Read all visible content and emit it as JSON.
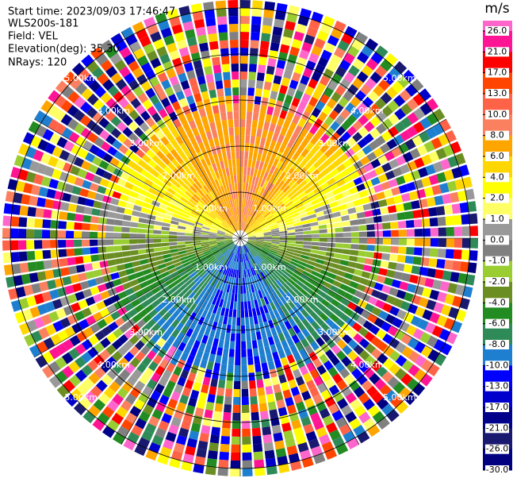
{
  "chart_data": {
    "type": "ppi",
    "info": [
      "Start time: 2023/09/03 17:46:47",
      "WLS200s-181",
      "Field: VEL",
      "Elevation(deg): 35.30",
      "NRays: 120"
    ],
    "range_labels": [
      "1.00km",
      "2.00km",
      "3.00km",
      "4.00km",
      "5.00km"
    ],
    "colorbar": {
      "label": "m/s",
      "ticks": [
        {
          "value": 26,
          "label": "26.0"
        },
        {
          "value": 21,
          "label": "21.0"
        },
        {
          "value": 17,
          "label": "17.0"
        },
        {
          "value": 13,
          "label": "13.0"
        },
        {
          "value": 10,
          "label": "10.0"
        },
        {
          "value": 8,
          "label": "8.0"
        },
        {
          "value": 6,
          "label": "6.0"
        },
        {
          "value": 4,
          "label": "4.0"
        },
        {
          "value": 2,
          "label": "2.0"
        },
        {
          "value": 1,
          "label": "1.0"
        },
        {
          "value": 0,
          "label": "0.0"
        },
        {
          "value": -1,
          "label": "-1.0"
        },
        {
          "value": -2,
          "label": "-2.0"
        },
        {
          "value": -4,
          "label": "-4.0"
        },
        {
          "value": -6,
          "label": "-6.0"
        },
        {
          "value": -8,
          "label": "-8.0"
        },
        {
          "value": -10,
          "label": "-10.0"
        },
        {
          "value": -13,
          "label": "-13.0"
        },
        {
          "value": -17,
          "label": "-17.0"
        },
        {
          "value": -21,
          "label": "-21.0"
        },
        {
          "value": -26,
          "label": "-26.0"
        },
        {
          "value": -30,
          "label": "-30.0"
        }
      ],
      "colors": [
        "#ff66cc",
        "#ff1493",
        "#ff0000",
        "#ff4500",
        "#ff6347",
        "#fa8060",
        "#ffa500",
        "#ffd700",
        "#ffff00",
        "#ffff66",
        "#999999",
        "#808080",
        "#9acd32",
        "#6b8e23",
        "#228b22",
        "#2e8b57",
        "#1e7fd0",
        "#0000ff",
        "#0000cd",
        "#00008b",
        "#191970",
        "#000080"
      ]
    }
  }
}
